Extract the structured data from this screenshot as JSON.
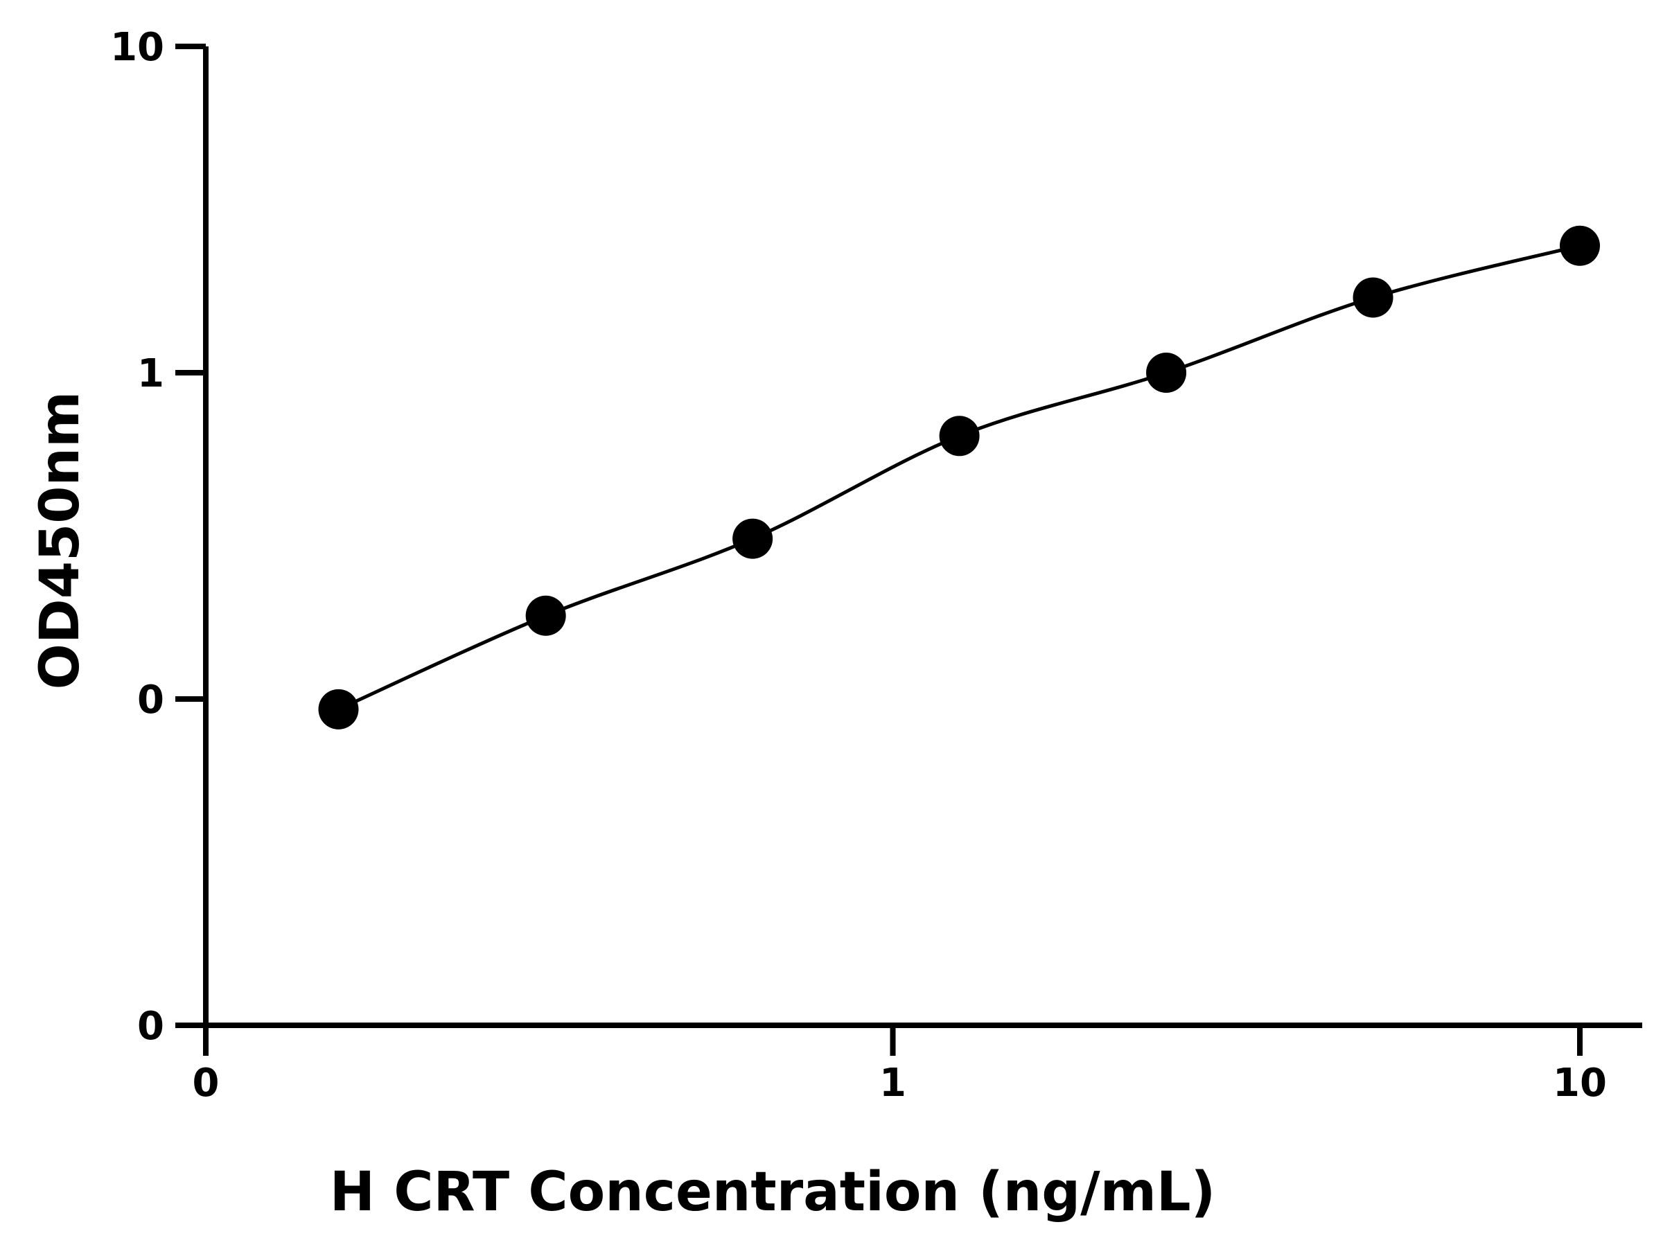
{
  "chart_data": {
    "type": "scatter",
    "title": "",
    "xlabel": "H CRT Concentration (ng/mL)",
    "ylabel": "OD450nm",
    "x_scale": "log",
    "y_scale": "log",
    "x_ticks": [
      {
        "value": 0.1,
        "label": "0"
      },
      {
        "value": 1,
        "label": "1"
      },
      {
        "value": 10,
        "label": "10"
      }
    ],
    "y_ticks": [
      {
        "value": 0.01,
        "label": "0"
      },
      {
        "value": 0.1,
        "label": "0"
      },
      {
        "value": 1,
        "label": "1"
      },
      {
        "value": 10,
        "label": "10"
      }
    ],
    "xlim": [
      0.1,
      12.5
    ],
    "ylim": [
      0.01,
      10
    ],
    "grid": false,
    "legend": "none",
    "colors": {
      "points": "#000000",
      "curve": "#000000",
      "axes": "#000000"
    },
    "series": [
      {
        "x": [
          0.156,
          0.3125,
          0.625,
          1.25,
          2.5,
          5,
          10
        ],
        "y": [
          0.093,
          0.18,
          0.31,
          0.64,
          1.0,
          1.7,
          2.45
        ],
        "fit_curve": true
      }
    ]
  }
}
